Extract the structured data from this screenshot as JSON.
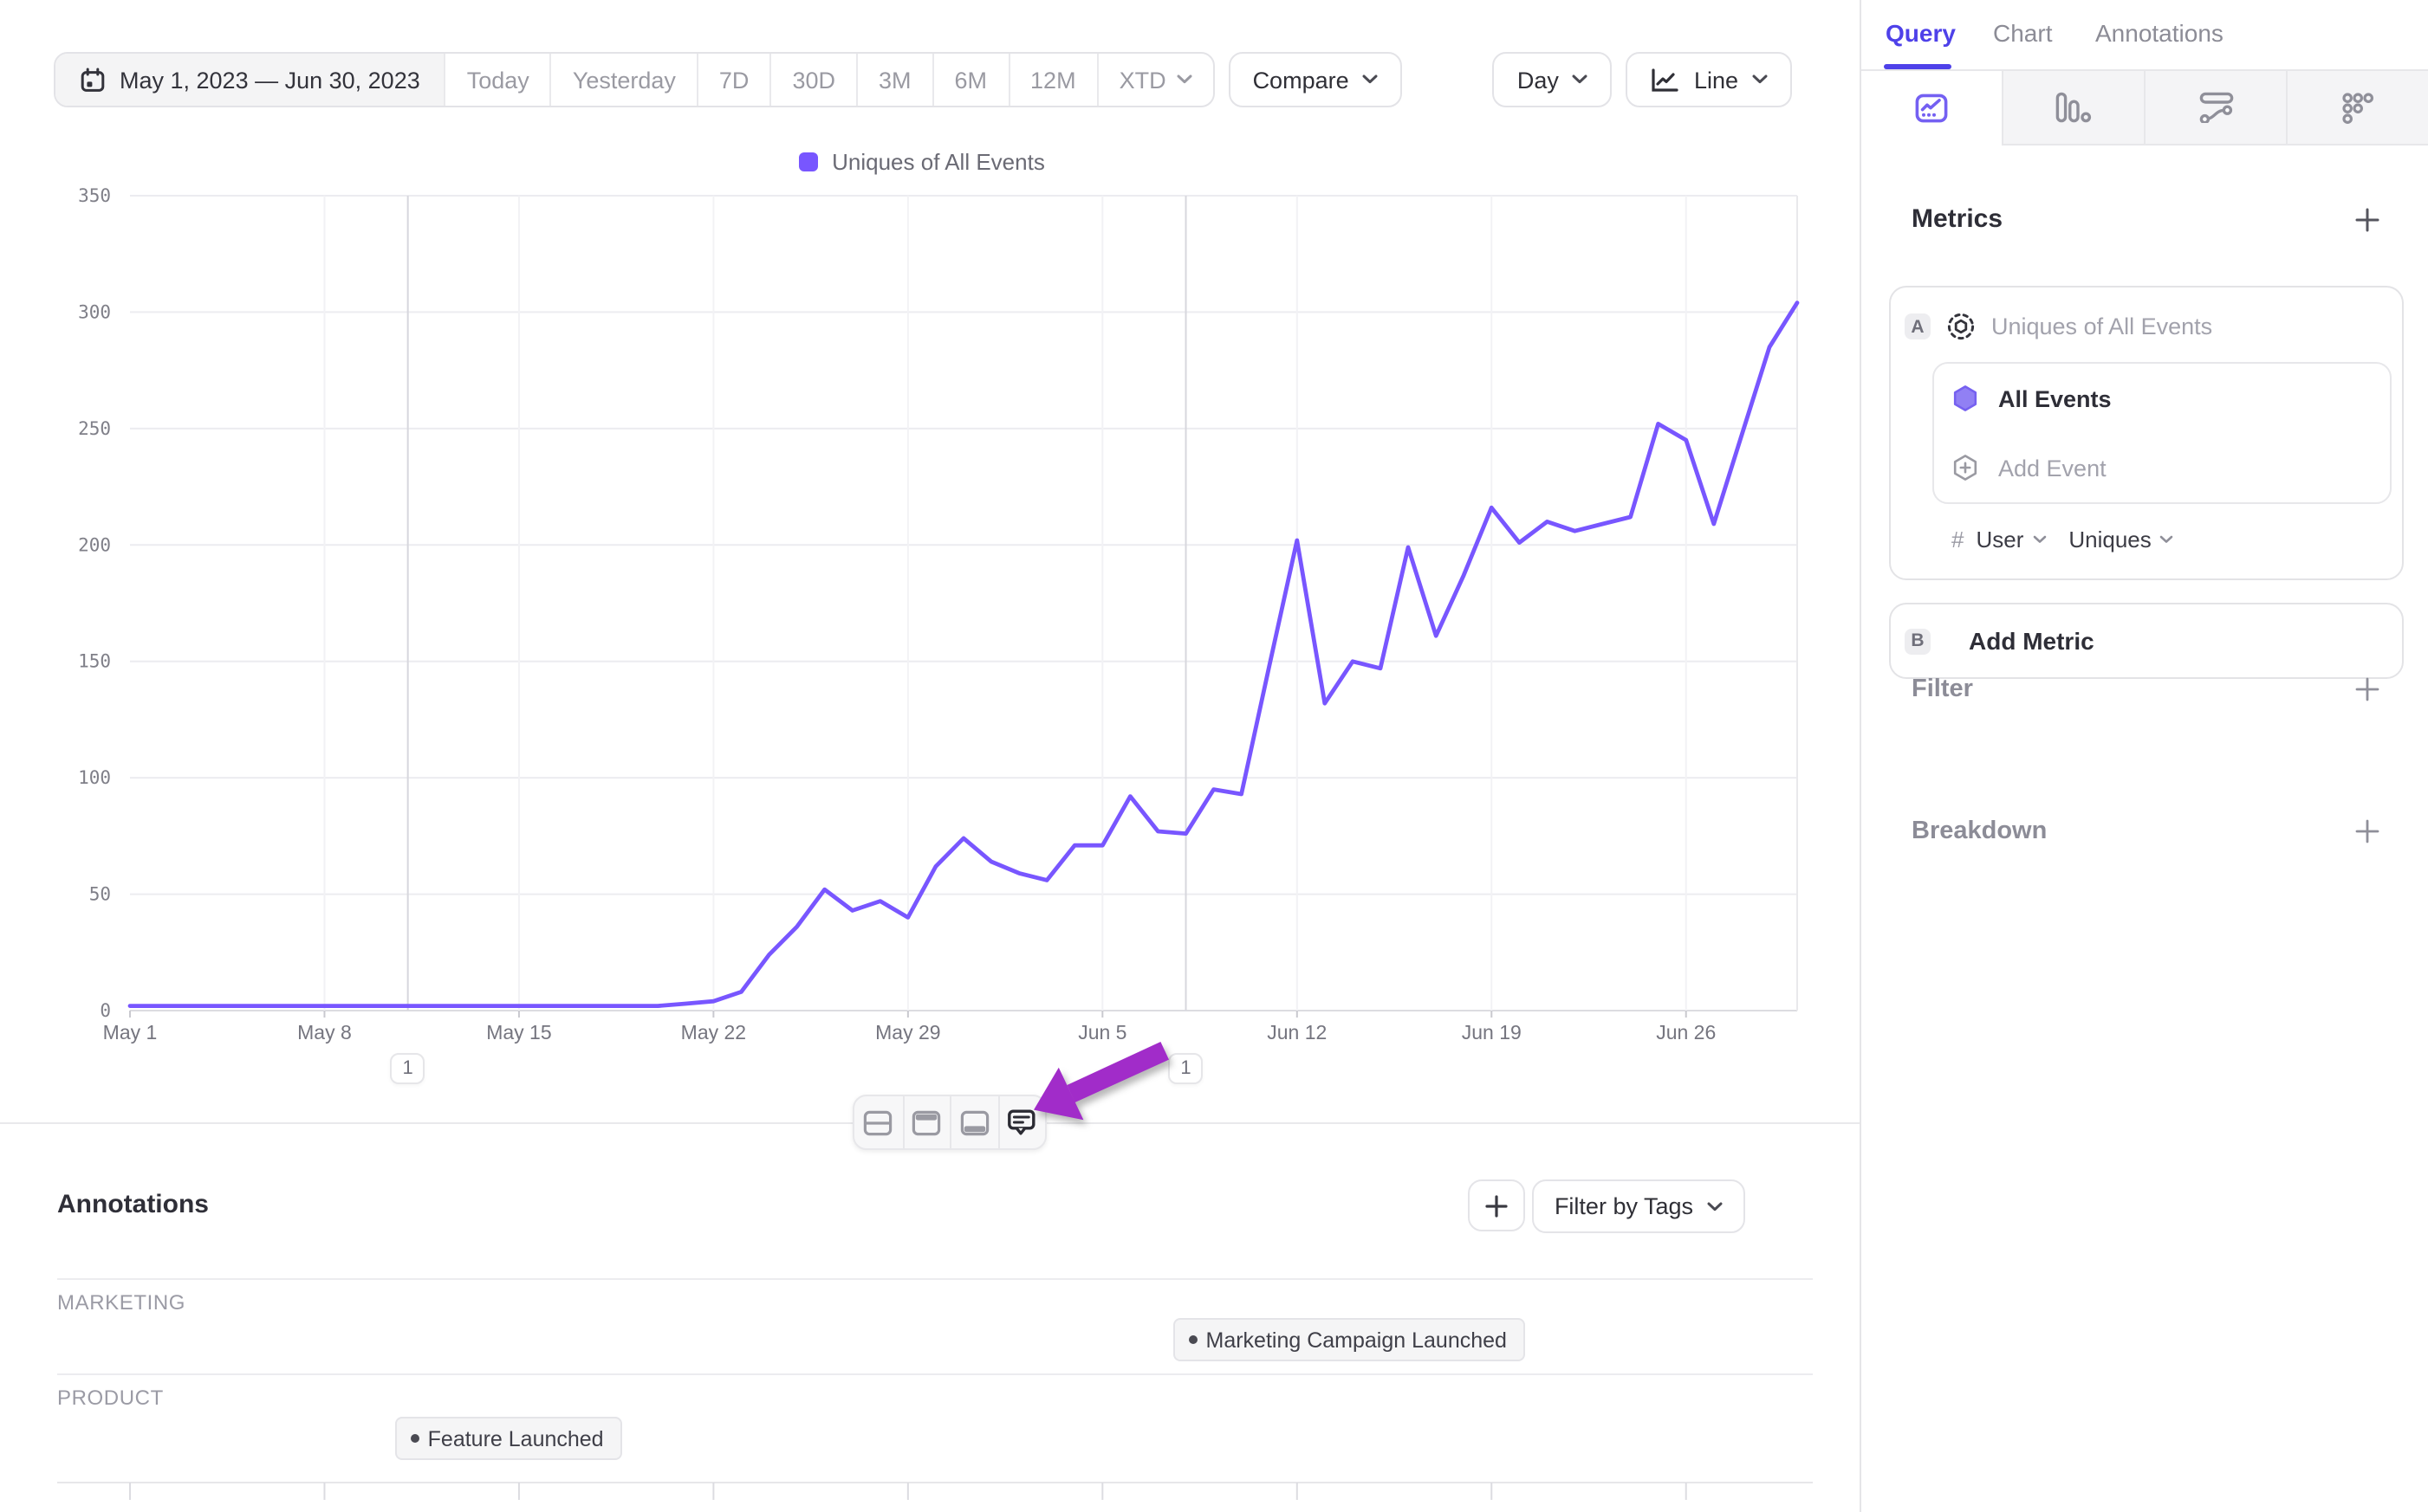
{
  "toolbar": {
    "date_range": "May 1, 2023 — Jun 30, 2023",
    "presets": [
      "Today",
      "Yesterday",
      "7D",
      "30D",
      "3M",
      "6M",
      "12M"
    ],
    "xtd_label": "XTD",
    "compare_label": "Compare",
    "granularity_label": "Day",
    "chart_type_label": "Line"
  },
  "legend": {
    "label": "Uniques of All Events",
    "swatch_color": "#7856ff"
  },
  "chart_data": {
    "type": "line",
    "title": "Uniques of All Events",
    "x_unit": "day",
    "x_start": "May 1, 2023",
    "x_end": "Jun 30, 2023",
    "x_tick_labels": [
      "May 1",
      "May 8",
      "May 15",
      "May 22",
      "May 29",
      "Jun 5",
      "Jun 12",
      "Jun 19",
      "Jun 26"
    ],
    "x_tick_day_indices": [
      0,
      7,
      14,
      21,
      28,
      35,
      42,
      49,
      56
    ],
    "ylim": [
      0,
      350
    ],
    "y_ticks": [
      0,
      50,
      100,
      150,
      200,
      250,
      300,
      350
    ],
    "grid": true,
    "legend_position": "top-center",
    "series": [
      {
        "name": "Uniques of All Events",
        "color": "#7856ff",
        "values": [
          2,
          2,
          2,
          2,
          2,
          2,
          2,
          2,
          2,
          2,
          2,
          2,
          2,
          2,
          2,
          2,
          2,
          2,
          2,
          2,
          3,
          4,
          8,
          24,
          36,
          52,
          43,
          47,
          40,
          62,
          74,
          64,
          59,
          56,
          71,
          71,
          92,
          77,
          76,
          95,
          93,
          148,
          202,
          132,
          150,
          147,
          199,
          161,
          187,
          216,
          201,
          210,
          206,
          209,
          212,
          252,
          245,
          209,
          247,
          285,
          304
        ]
      }
    ],
    "annotation_markers": [
      {
        "day_index": 10,
        "badge": "1"
      },
      {
        "day_index": 38,
        "badge": "1"
      }
    ]
  },
  "float_toolbar": {
    "icons": [
      "split-rows-layout-icon",
      "top-panel-layout-icon",
      "bottom-panel-layout-icon",
      "annotations-comment-icon"
    ],
    "active_icon": "annotations-comment-icon"
  },
  "overlay": {
    "pointer_arrow_color": "#a12cc9"
  },
  "annotations_section": {
    "title": "Annotations",
    "add_label": "+",
    "filter_by_tags_label": "Filter by Tags",
    "rows": [
      {
        "category": "MARKETING",
        "events": [
          {
            "label": "Marketing Campaign Launched",
            "day_index": 38
          }
        ]
      },
      {
        "category": "PRODUCT",
        "events": [
          {
            "label": "Feature Launched",
            "day_index": 10
          }
        ]
      }
    ]
  },
  "sidebar": {
    "tabs": [
      {
        "label": "Query",
        "active": true
      },
      {
        "label": "Chart",
        "active": false
      },
      {
        "label": "Annotations",
        "active": false
      }
    ],
    "view_tabs": [
      "insights-line-icon",
      "bar-chart-icon",
      "flows-icon",
      "retention-dots-icon"
    ],
    "metrics": {
      "heading": "Metrics",
      "metric_a": {
        "letter": "A",
        "name": "Uniques of All Events",
        "event": "All Events",
        "add_event_label": "Add Event",
        "count_symbol": "#",
        "entity_selector": "User",
        "aggregation_selector": "Uniques"
      },
      "metric_b": {
        "letter": "B",
        "label": "Add Metric"
      }
    },
    "filter_label": "Filter",
    "breakdown_label": "Breakdown"
  }
}
